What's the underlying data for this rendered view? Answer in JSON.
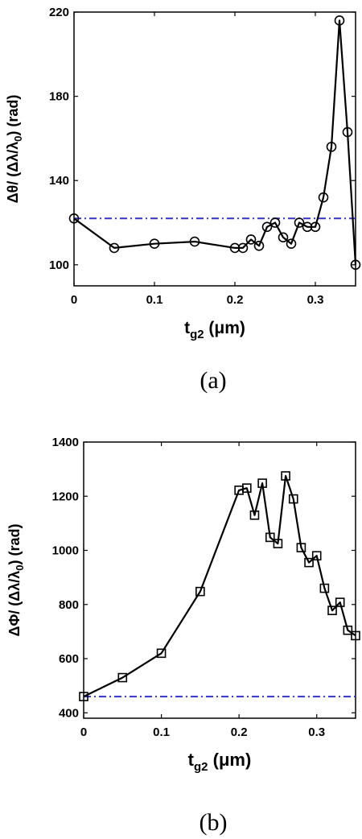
{
  "chart_data": [
    {
      "type": "line",
      "caption": "(a)",
      "xlabel": "t",
      "xlabel_sub": "g2",
      "xlabel_unit": " (μm)",
      "ylabel": "Δθ/ (Δλ/λ",
      "ylabel_sub": "0",
      "ylabel_unit": ") (rad)",
      "xlim": [
        0,
        0.35
      ],
      "ylim": [
        90,
        220
      ],
      "xticks": [
        0,
        0.1,
        0.2,
        0.3
      ],
      "xtick_labels": [
        "0",
        "0.1",
        "0.2",
        "0.3"
      ],
      "yticks": [
        100,
        140,
        180,
        220
      ],
      "ytick_labels": [
        "100",
        "140",
        "180",
        "220"
      ],
      "marker": "circle",
      "line_color": "#000000",
      "series": [
        {
          "x": [
            0,
            0.05,
            0.1,
            0.15,
            0.2,
            0.21,
            0.22,
            0.23,
            0.24,
            0.25,
            0.26,
            0.27,
            0.28,
            0.29,
            0.3,
            0.31,
            0.32,
            0.33,
            0.34,
            0.35
          ],
          "y": [
            122,
            108,
            110,
            111,
            108,
            108,
            112,
            109,
            118,
            120,
            113,
            110,
            120,
            118,
            118,
            132,
            156,
            216,
            163,
            100
          ]
        }
      ],
      "reference_line": {
        "y": 122,
        "color": "#3333cc",
        "style": "dash-dot"
      }
    },
    {
      "type": "line",
      "caption": "(b)",
      "xlabel": "t",
      "xlabel_sub": "g2",
      "xlabel_unit": " (μm)",
      "ylabel": "ΔΦ/ (Δλ/λ",
      "ylabel_sub": "0",
      "ylabel_unit": ") (rad)",
      "xlim": [
        0,
        0.35
      ],
      "ylim": [
        380,
        1400
      ],
      "xticks": [
        0,
        0.1,
        0.2,
        0.3
      ],
      "xtick_labels": [
        "0",
        "0.1",
        "0.2",
        "0.3"
      ],
      "yticks": [
        400,
        600,
        800,
        1000,
        1200,
        1400
      ],
      "ytick_labels": [
        "400",
        "600",
        "800",
        "1000",
        "1200",
        "1400"
      ],
      "marker": "square",
      "line_color": "#000000",
      "series": [
        {
          "x": [
            0,
            0.05,
            0.1,
            0.15,
            0.2,
            0.21,
            0.22,
            0.23,
            0.24,
            0.25,
            0.26,
            0.27,
            0.28,
            0.29,
            0.3,
            0.31,
            0.32,
            0.33,
            0.34,
            0.35
          ],
          "y": [
            460,
            530,
            620,
            848,
            1222,
            1230,
            1130,
            1248,
            1048,
            1025,
            1275,
            1190,
            1010,
            955,
            980,
            860,
            778,
            808,
            705,
            685
          ]
        }
      ],
      "reference_line": {
        "y": 460,
        "color": "#3333cc",
        "style": "dash-dot"
      }
    }
  ]
}
